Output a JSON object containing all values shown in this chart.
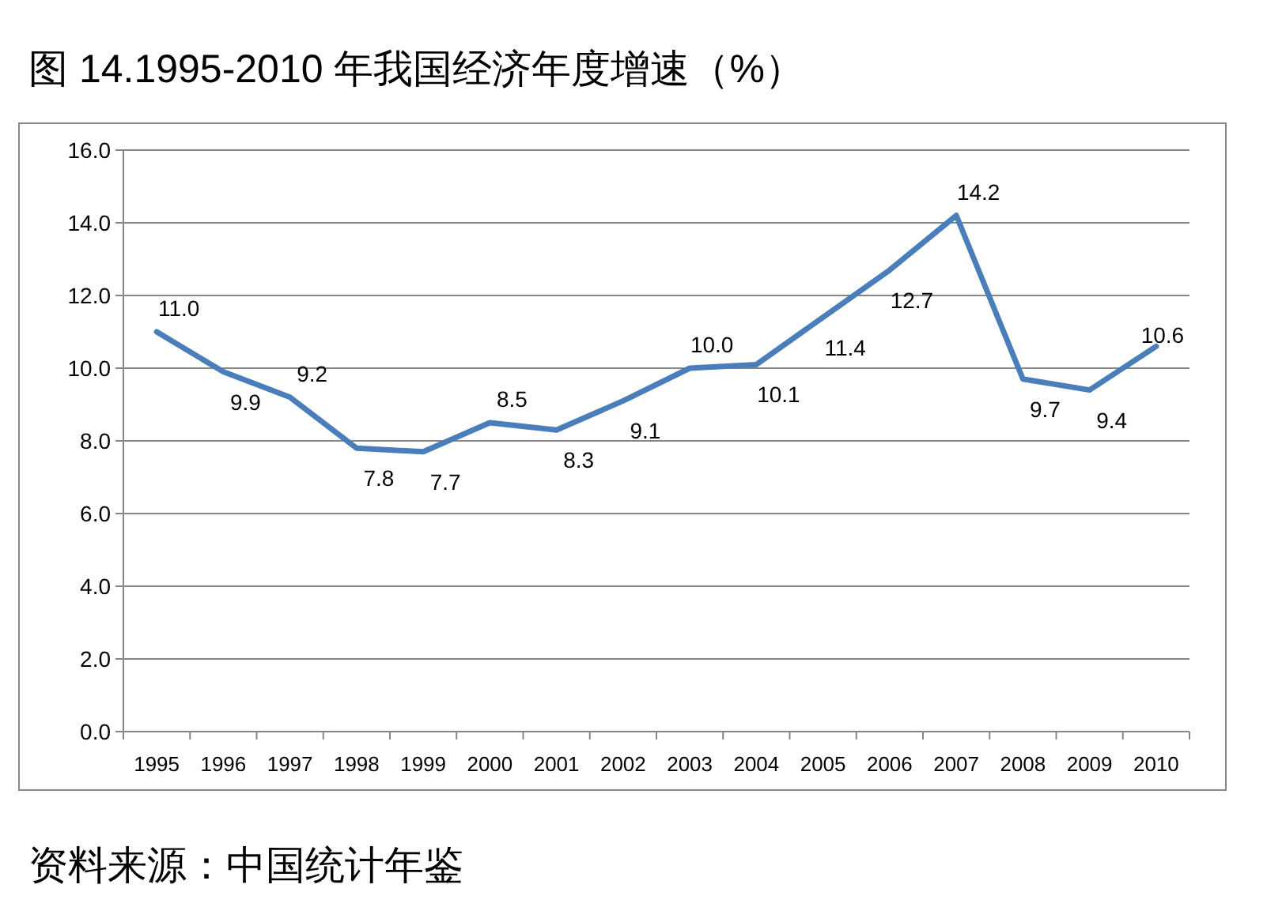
{
  "chart_data": {
    "type": "line",
    "title": "图 14.1995-2010 年我国经济年度增速（%）",
    "categories": [
      "1995",
      "1996",
      "1997",
      "1998",
      "1999",
      "2000",
      "2001",
      "2002",
      "2003",
      "2004",
      "2005",
      "2006",
      "2007",
      "2008",
      "2009",
      "2010"
    ],
    "series": [
      {
        "color": "#4a7ebb",
        "values": [
          11.0,
          9.9,
          9.2,
          7.8,
          7.7,
          8.5,
          8.3,
          9.1,
          10.0,
          10.1,
          11.4,
          12.7,
          14.2,
          9.7,
          9.4,
          10.6
        ],
        "value_labels": [
          "11.0",
          "9.9",
          "9.2",
          "7.8",
          "7.7",
          "8.5",
          "8.3",
          "9.1",
          "10.0",
          "10.1",
          "11.4",
          "12.7",
          "14.2",
          "9.7",
          "9.4",
          "10.6"
        ]
      }
    ],
    "ylim": [
      0,
      16
    ],
    "yticks": [
      {
        "value": 0,
        "label": "0.0"
      },
      {
        "value": 2,
        "label": "2.0"
      },
      {
        "value": 4,
        "label": "4.0"
      },
      {
        "value": 6,
        "label": "6.0"
      },
      {
        "value": 8,
        "label": "8.0"
      },
      {
        "value": 10,
        "label": "10.0"
      },
      {
        "value": 12,
        "label": "12.0"
      },
      {
        "value": 14,
        "label": "14.0"
      },
      {
        "value": 16,
        "label": "16.0"
      }
    ],
    "grid": "y",
    "marker": "none",
    "line_style": "solid",
    "annotations": [
      "资料来源：中国统计年鉴"
    ]
  }
}
